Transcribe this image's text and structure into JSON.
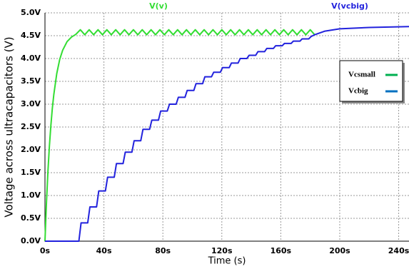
{
  "chart_data": {
    "type": "line",
    "x_label": "Time (s)",
    "y_label": "Voltage across ultracapacitors (V)",
    "xlim": [
      0,
      247
    ],
    "ylim": [
      0,
      5
    ],
    "xticks": [
      {
        "value": 0,
        "label": "0s"
      },
      {
        "value": 40,
        "label": "40s"
      },
      {
        "value": 80,
        "label": "80s"
      },
      {
        "value": 120,
        "label": "120s"
      },
      {
        "value": 160,
        "label": "160s"
      },
      {
        "value": 200,
        "label": "200s"
      },
      {
        "value": 240,
        "label": "240s"
      }
    ],
    "yticks": [
      {
        "value": 0,
        "label": "0.0V"
      },
      {
        "value": 0.5,
        "label": "0.5V"
      },
      {
        "value": 1,
        "label": "1.0V"
      },
      {
        "value": 1.5,
        "label": "1.5V"
      },
      {
        "value": 2,
        "label": "2.0V"
      },
      {
        "value": 2.5,
        "label": "2.5V"
      },
      {
        "value": 3,
        "label": "3.0V"
      },
      {
        "value": 3.5,
        "label": "3.5V"
      },
      {
        "value": 4,
        "label": "4.0V"
      },
      {
        "value": 4.5,
        "label": "4.5V"
      },
      {
        "value": 5,
        "label": "5.0V"
      }
    ],
    "grid": true,
    "series": [
      {
        "name": "V(v)",
        "color": "#33dd33",
        "x": [
          0,
          1,
          2,
          3,
          4,
          5,
          6,
          8,
          10,
          12,
          15,
          18,
          21,
          24,
          27,
          30,
          33,
          36,
          39,
          42,
          45,
          48,
          51,
          54,
          57,
          60,
          63,
          66,
          69,
          72,
          75,
          78,
          81,
          84,
          87,
          90,
          93,
          96,
          99,
          102,
          105,
          108,
          111,
          114,
          117,
          120,
          123,
          126,
          129,
          132,
          135,
          138,
          141,
          144,
          147,
          150,
          153,
          156,
          159,
          162,
          165,
          168,
          171,
          174,
          177,
          180,
          183
        ],
        "values": [
          0,
          0.83,
          1.52,
          2.08,
          2.53,
          2.91,
          3.21,
          3.67,
          3.98,
          4.18,
          4.37,
          4.47,
          4.53,
          4.63,
          4.52,
          4.63,
          4.52,
          4.63,
          4.52,
          4.63,
          4.52,
          4.63,
          4.52,
          4.63,
          4.52,
          4.63,
          4.52,
          4.63,
          4.52,
          4.63,
          4.52,
          4.63,
          4.52,
          4.63,
          4.52,
          4.63,
          4.52,
          4.63,
          4.52,
          4.63,
          4.52,
          4.63,
          4.52,
          4.63,
          4.52,
          4.63,
          4.52,
          4.63,
          4.52,
          4.63,
          4.52,
          4.63,
          4.52,
          4.63,
          4.52,
          4.63,
          4.52,
          4.63,
          4.52,
          4.63,
          4.52,
          4.63,
          4.52,
          4.63,
          4.52,
          4.63,
          4.52
        ]
      },
      {
        "name": "V(vcbig)",
        "color": "#2222dd",
        "x": [
          0,
          23,
          24.5,
          29,
          30.5,
          35,
          36.5,
          41,
          42.5,
          47,
          48.5,
          53,
          54.5,
          59,
          60.5,
          65,
          66.5,
          71,
          72.5,
          77,
          78.5,
          83,
          84.5,
          89,
          90.5,
          95,
          96.5,
          101,
          102.5,
          107,
          108.5,
          113,
          114.5,
          119,
          120.5,
          125,
          126.5,
          131,
          132.5,
          137,
          138.5,
          143,
          144.5,
          149,
          150.5,
          155,
          156.5,
          161,
          162.5,
          167,
          168.5,
          173,
          174.5,
          179,
          180.5,
          183,
          190,
          200,
          220,
          247
        ],
        "values": [
          0,
          0,
          0.4,
          0.4,
          0.75,
          0.75,
          1.1,
          1.1,
          1.4,
          1.4,
          1.7,
          1.7,
          1.95,
          1.95,
          2.2,
          2.2,
          2.45,
          2.45,
          2.65,
          2.65,
          2.85,
          2.85,
          3.0,
          3.0,
          3.15,
          3.15,
          3.3,
          3.3,
          3.45,
          3.45,
          3.6,
          3.6,
          3.7,
          3.7,
          3.8,
          3.8,
          3.9,
          3.9,
          4.0,
          4.0,
          4.07,
          4.07,
          4.15,
          4.15,
          4.22,
          4.22,
          4.28,
          4.28,
          4.33,
          4.33,
          4.38,
          4.38,
          4.43,
          4.43,
          4.48,
          4.52,
          4.6,
          4.65,
          4.68,
          4.7
        ]
      }
    ],
    "legend": [
      {
        "label": "Vcsmall",
        "color": "#00b050"
      },
      {
        "label": "Vcbig",
        "color": "#0070c0"
      }
    ]
  }
}
